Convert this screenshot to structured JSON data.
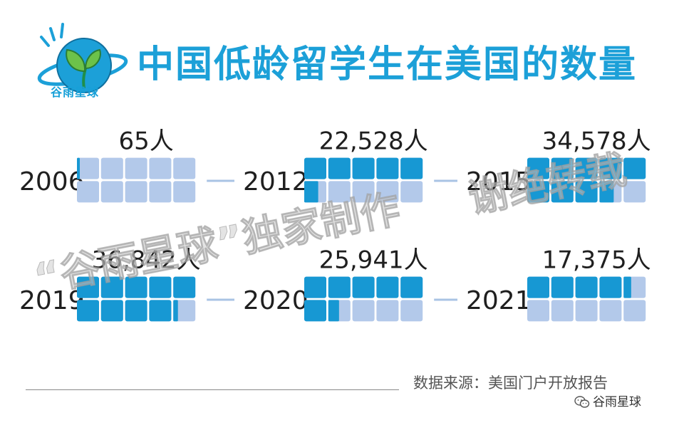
{
  "title": "中国低龄留学生在美国的数量",
  "logo": {
    "label": "谷雨星球",
    "icon": "sprout-globe-icon"
  },
  "watermark": {
    "line1": "“谷雨星球”独家制作",
    "line2": "谢绝转载"
  },
  "chart_data": {
    "type": "waffle",
    "unit": "人",
    "cells_per_panel": 10,
    "people_per_cell": 4000,
    "colors": {
      "filled": "#1798d3",
      "empty": "#b3c9ea",
      "connector": "#a9c3e4"
    },
    "categories": [
      "2006",
      "2012",
      "2015",
      "2019",
      "2020",
      "2021"
    ],
    "values": [
      65,
      22528,
      34578,
      36842,
      25941,
      17375
    ],
    "value_labels": [
      "65人",
      "22,528人",
      "34,578人",
      "36,842人",
      "25,941人",
      "17,375人"
    ]
  },
  "source": "数据来源：美国门户开放报告",
  "wechat": {
    "label": "谷雨星球",
    "icon": "wechat-icon"
  }
}
